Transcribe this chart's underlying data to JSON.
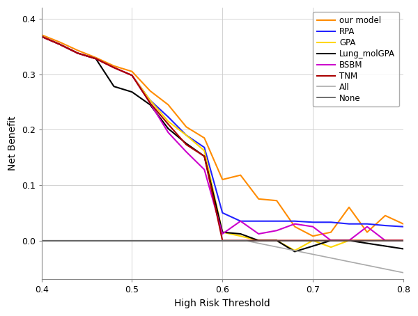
{
  "xlabel": "High Risk Threshold",
  "ylabel": "Net Benefit",
  "xlim": [
    0.4,
    0.8
  ],
  "ylim": [
    -0.07,
    0.42
  ],
  "yticks": [
    0.0,
    0.1,
    0.2,
    0.3,
    0.4
  ],
  "xticks": [
    0.4,
    0.5,
    0.6,
    0.7,
    0.8
  ],
  "background_color": "#ffffff",
  "our_model": {
    "label": "our model",
    "color": "#FF8C00",
    "lw": 1.5,
    "x": [
      0.4,
      0.42,
      0.44,
      0.46,
      0.48,
      0.5,
      0.52,
      0.54,
      0.56,
      0.58,
      0.6,
      0.62,
      0.64,
      0.66,
      0.68,
      0.7,
      0.72,
      0.74,
      0.76,
      0.78,
      0.8
    ],
    "y": [
      0.371,
      0.358,
      0.343,
      0.33,
      0.315,
      0.305,
      0.27,
      0.245,
      0.205,
      0.185,
      0.11,
      0.118,
      0.075,
      0.072,
      0.025,
      0.008,
      0.015,
      0.06,
      0.015,
      0.045,
      0.03
    ]
  },
  "RPA": {
    "label": "RPA",
    "color": "#2222FF",
    "lw": 1.5,
    "x": [
      0.4,
      0.42,
      0.44,
      0.46,
      0.48,
      0.5,
      0.52,
      0.54,
      0.56,
      0.58,
      0.6,
      0.62,
      0.64,
      0.66,
      0.68,
      0.7,
      0.72,
      0.74,
      0.76,
      0.78,
      0.8
    ],
    "y": [
      0.368,
      0.354,
      0.338,
      0.328,
      0.312,
      0.298,
      0.253,
      0.223,
      0.19,
      0.168,
      0.05,
      0.035,
      0.035,
      0.035,
      0.035,
      0.033,
      0.033,
      0.03,
      0.03,
      0.027,
      0.025
    ]
  },
  "GPA": {
    "label": "GPA",
    "color": "#FFD700",
    "lw": 1.5,
    "x": [
      0.4,
      0.42,
      0.44,
      0.46,
      0.48,
      0.5,
      0.52,
      0.54,
      0.56,
      0.58,
      0.6,
      0.62,
      0.64,
      0.66,
      0.68,
      0.7,
      0.72,
      0.74,
      0.76,
      0.78,
      0.8
    ],
    "y": [
      0.368,
      0.354,
      0.338,
      0.328,
      0.312,
      0.298,
      0.253,
      0.215,
      0.19,
      0.162,
      0.015,
      0.008,
      0.0,
      0.0,
      -0.018,
      0.0,
      -0.012,
      0.0,
      0.0,
      0.0,
      0.0
    ]
  },
  "Lung_molGPA": {
    "label": "Lung_molGPA",
    "color": "#000000",
    "lw": 1.5,
    "x": [
      0.4,
      0.42,
      0.44,
      0.46,
      0.48,
      0.5,
      0.52,
      0.54,
      0.56,
      0.58,
      0.6,
      0.62,
      0.64,
      0.66,
      0.68,
      0.7,
      0.72,
      0.74,
      0.76,
      0.78,
      0.8
    ],
    "y": [
      0.368,
      0.354,
      0.338,
      0.328,
      0.278,
      0.268,
      0.245,
      0.202,
      0.175,
      0.152,
      0.015,
      0.012,
      0.0,
      0.0,
      -0.02,
      -0.01,
      0.0,
      0.0,
      -0.005,
      -0.01,
      -0.015
    ]
  },
  "BSBM": {
    "label": "BSBM",
    "color": "#CC00CC",
    "lw": 1.5,
    "x": [
      0.4,
      0.42,
      0.44,
      0.46,
      0.48,
      0.5,
      0.52,
      0.54,
      0.56,
      0.58,
      0.6,
      0.62,
      0.64,
      0.66,
      0.68,
      0.7,
      0.72,
      0.74,
      0.76,
      0.78,
      0.8
    ],
    "y": [
      0.368,
      0.354,
      0.338,
      0.328,
      0.312,
      0.298,
      0.248,
      0.195,
      0.16,
      0.128,
      0.012,
      0.035,
      0.012,
      0.018,
      0.03,
      0.025,
      0.0,
      0.0,
      0.025,
      0.0,
      0.0
    ]
  },
  "TNM": {
    "label": "TNM",
    "color": "#AA0000",
    "lw": 1.5,
    "x": [
      0.4,
      0.42,
      0.44,
      0.46,
      0.48,
      0.5,
      0.52,
      0.54,
      0.56,
      0.58,
      0.6,
      0.62,
      0.64,
      0.66,
      0.68,
      0.7,
      0.72,
      0.74,
      0.76,
      0.78,
      0.8
    ],
    "y": [
      0.368,
      0.354,
      0.338,
      0.328,
      0.312,
      0.298,
      0.248,
      0.21,
      0.173,
      0.152,
      0.0,
      0.0,
      0.0,
      0.0,
      0.0,
      0.0,
      0.0,
      0.0,
      0.0,
      0.0,
      0.0
    ]
  },
  "All": {
    "label": "All",
    "color": "#AAAAAA",
    "lw": 1.2,
    "x": [
      0.4,
      0.625,
      0.8
    ],
    "y": [
      0.0,
      0.0,
      -0.058
    ]
  },
  "None": {
    "label": "None",
    "color": "#555555",
    "lw": 1.2,
    "x": [
      0.4,
      0.8
    ],
    "y": [
      0.0,
      0.0
    ]
  },
  "legend_order": [
    "our_model",
    "RPA",
    "GPA",
    "Lung_molGPA",
    "BSBM",
    "TNM",
    "All",
    "None"
  ]
}
